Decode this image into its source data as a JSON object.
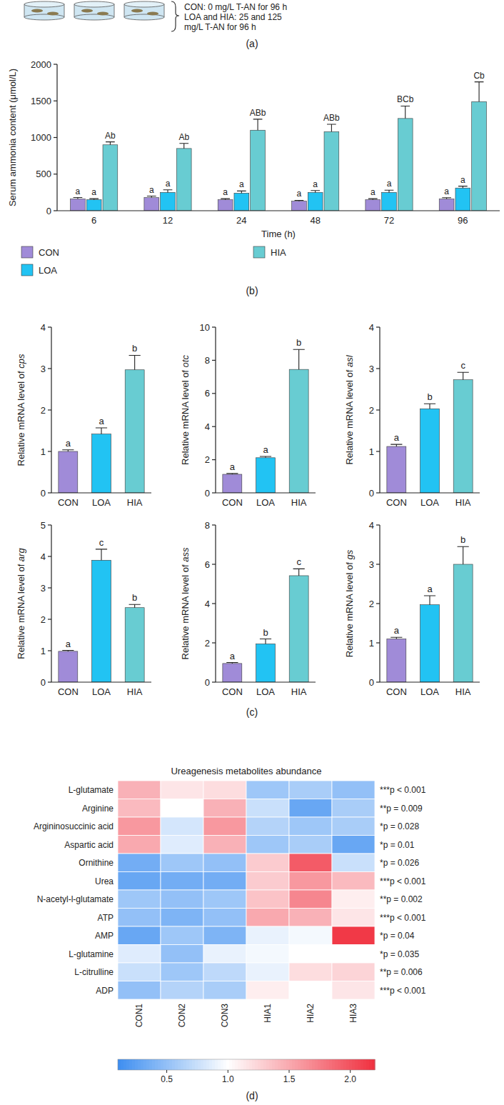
{
  "panel_labels": [
    "(a)",
    "(b)",
    "(c)",
    "(d)"
  ],
  "diagram": {
    "texts": [
      "CON: 0 mg/L T-AN for 96 h",
      "LOA and HIA: 25 and 125 mg/L T-AN for 96 h"
    ]
  },
  "chart_data": [
    {
      "type": "bar",
      "ylabel": "Serum ammonia content (μmol/L)",
      "xlabel": "Time (h)",
      "categories": [
        "6",
        "12",
        "24",
        "48",
        "72",
        "96"
      ],
      "series": [
        {
          "name": "CON",
          "color": "#a08bd8",
          "values": [
            160,
            180,
            150,
            130,
            150,
            160
          ],
          "errors": [
            20,
            20,
            15,
            12,
            15,
            18
          ],
          "letters": [
            "a",
            "a",
            "a",
            "a",
            "a",
            "a"
          ]
        },
        {
          "name": "LOA",
          "color": "#22c3f3",
          "values": [
            150,
            250,
            240,
            250,
            250,
            310
          ],
          "errors": [
            15,
            35,
            30,
            25,
            30,
            25
          ],
          "letters": [
            "a",
            "a",
            "a",
            "a",
            "a",
            "a"
          ]
        },
        {
          "name": "HIA",
          "color": "#68ccd2",
          "values": [
            900,
            850,
            1100,
            1080,
            1260,
            1490
          ],
          "errors": [
            40,
            70,
            150,
            100,
            170,
            270
          ],
          "letters": [
            "Ab",
            "Ab",
            "ABb",
            "ABb",
            "BCb",
            "Cb"
          ]
        }
      ],
      "ylim": [
        0,
        2000
      ],
      "yticks": [
        0,
        500,
        1000,
        1500,
        2000
      ],
      "legend": "bottom"
    },
    {
      "type": "bar",
      "ylabel": "Relative mRNA level of cps",
      "categories": [
        "CON",
        "LOA",
        "HIA"
      ],
      "values": [
        1.0,
        1.42,
        2.97
      ],
      "errors": [
        0.04,
        0.15,
        0.35
      ],
      "letters": [
        "a",
        "a",
        "b"
      ],
      "colors": [
        "#a08bd8",
        "#22c3f3",
        "#68ccd2"
      ],
      "ylim": [
        0,
        4
      ],
      "yticks": [
        0,
        1,
        2,
        3,
        4
      ]
    },
    {
      "type": "bar",
      "ylabel": "Relative mRNA level of otc",
      "categories": [
        "CON",
        "LOA",
        "HIA"
      ],
      "values": [
        1.12,
        2.12,
        7.45
      ],
      "errors": [
        0.05,
        0.08,
        1.2
      ],
      "letters": [
        "a",
        "a",
        "b"
      ],
      "colors": [
        "#a08bd8",
        "#22c3f3",
        "#68ccd2"
      ],
      "ylim": [
        0,
        10
      ],
      "yticks": [
        0,
        2,
        4,
        6,
        8,
        10
      ]
    },
    {
      "type": "bar",
      "ylabel": "Relative mRNA level of asl",
      "categories": [
        "CON",
        "LOA",
        "HIA"
      ],
      "values": [
        1.12,
        2.03,
        2.73
      ],
      "errors": [
        0.05,
        0.12,
        0.18
      ],
      "letters": [
        "a",
        "b",
        "c"
      ],
      "colors": [
        "#a08bd8",
        "#22c3f3",
        "#68ccd2"
      ],
      "ylim": [
        0,
        4
      ],
      "yticks": [
        0,
        1,
        2,
        3,
        4
      ]
    },
    {
      "type": "bar",
      "ylabel": "Relative mRNA level of arg",
      "categories": [
        "CON",
        "LOA",
        "HIA"
      ],
      "values": [
        0.98,
        3.88,
        2.37
      ],
      "errors": [
        0.03,
        0.35,
        0.1
      ],
      "letters": [
        "a",
        "c",
        "b"
      ],
      "colors": [
        "#a08bd8",
        "#22c3f3",
        "#68ccd2"
      ],
      "ylim": [
        0,
        5
      ],
      "yticks": [
        0,
        1,
        2,
        3,
        4,
        5
      ]
    },
    {
      "type": "bar",
      "ylabel": "Relative mRNA level of ass",
      "categories": [
        "CON",
        "LOA",
        "HIA"
      ],
      "values": [
        0.95,
        1.95,
        5.42
      ],
      "errors": [
        0.05,
        0.25,
        0.35
      ],
      "letters": [
        "a",
        "b",
        "c"
      ],
      "colors": [
        "#a08bd8",
        "#22c3f3",
        "#68ccd2"
      ],
      "ylim": [
        0,
        8
      ],
      "yticks": [
        0,
        2,
        4,
        6,
        8
      ]
    },
    {
      "type": "bar",
      "ylabel": "Relative mRNA level of gs",
      "categories": [
        "CON",
        "LOA",
        "HIA"
      ],
      "values": [
        1.1,
        1.97,
        3.0
      ],
      "errors": [
        0.04,
        0.23,
        0.45
      ],
      "letters": [
        "a",
        "a",
        "b"
      ],
      "colors": [
        "#a08bd8",
        "#22c3f3",
        "#68ccd2"
      ],
      "ylim": [
        0,
        4
      ],
      "yticks": [
        0,
        1,
        2,
        3,
        4
      ]
    },
    {
      "type": "heatmap",
      "title": "Ureagenesis metabolites abundance",
      "rows": [
        "L-glutamate",
        "Arginine",
        "Argininosuccinic acid",
        "Aspartic acid",
        "Ornithine",
        "Urea",
        "N-acetyl-l-glutamate",
        "ATP",
        "AMP",
        "L-glutamine",
        "L-citrulline",
        "ADP"
      ],
      "columns": [
        "CON1",
        "CON2",
        "CON3",
        "HIA1",
        "HIA2",
        "HIA3"
      ],
      "cells": [
        [
          1.45,
          1.15,
          1.2,
          0.55,
          0.6,
          0.5
        ],
        [
          1.4,
          1.0,
          1.45,
          0.75,
          0.3,
          0.6
        ],
        [
          1.6,
          0.8,
          1.6,
          0.65,
          0.55,
          0.6
        ],
        [
          1.5,
          0.85,
          1.45,
          0.55,
          0.6,
          0.3
        ],
        [
          0.35,
          0.55,
          0.5,
          1.3,
          1.95,
          0.75
        ],
        [
          0.3,
          0.35,
          0.35,
          1.3,
          1.6,
          1.4
        ],
        [
          0.55,
          0.5,
          0.55,
          1.35,
          1.7,
          1.1
        ],
        [
          0.5,
          0.4,
          0.5,
          1.5,
          1.45,
          1.15
        ],
        [
          0.3,
          0.55,
          0.4,
          0.9,
          0.95,
          2.15
        ],
        [
          0.85,
          0.5,
          0.9,
          0.95,
          1.0,
          1.0
        ],
        [
          0.75,
          0.55,
          0.7,
          0.9,
          1.2,
          1.25
        ],
        [
          0.5,
          0.65,
          0.6,
          1.1,
          1.0,
          1.15
        ]
      ],
      "p_values": [
        "***p < 0.001",
        "**p = 0.009",
        "*p = 0.028",
        "*p = 0.01",
        "*p = 0.026",
        "***p < 0.001",
        "**p = 0.002",
        "***p < 0.001",
        "*p = 0.04",
        "*p = 0.035",
        "**p = 0.006",
        "***p < 0.001"
      ],
      "colorbar": {
        "range": [
          0.1,
          2.2
        ],
        "midpoint": 1,
        "ticks": [
          0.5,
          {
            "value": 1,
            "label": "1.0"
          },
          1.5,
          {
            "value": 2,
            "label": "2.0"
          }
        ]
      }
    }
  ]
}
